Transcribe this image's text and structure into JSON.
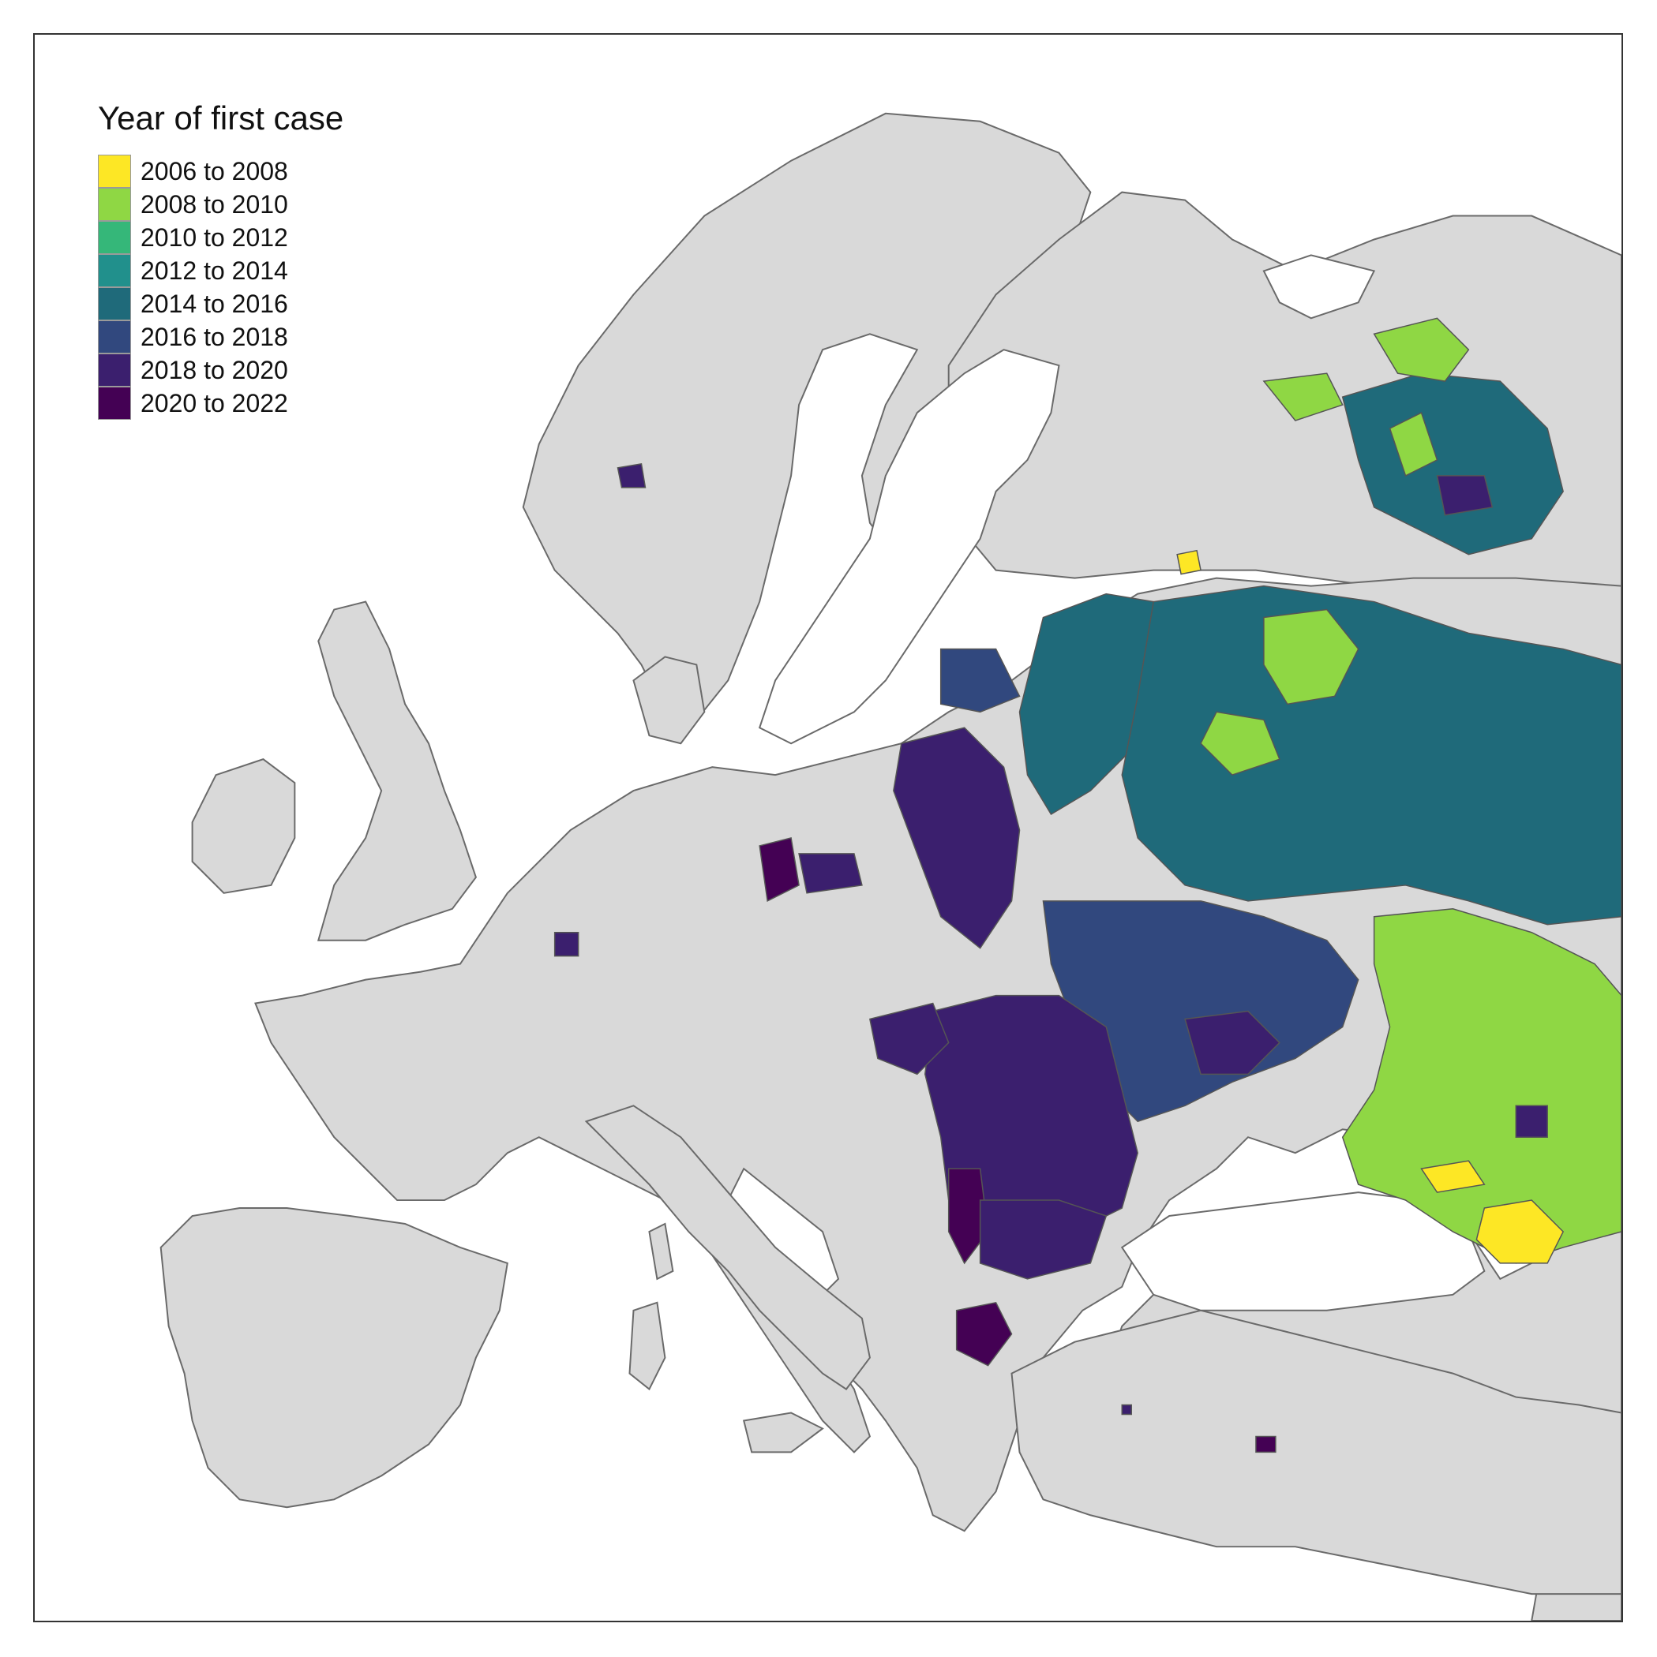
{
  "legend": {
    "title": "Year of first case",
    "items": [
      {
        "label": "2006 to 2008",
        "color": "#FDE725"
      },
      {
        "label": "2008 to 2010",
        "color": "#8FD744"
      },
      {
        "label": "2010 to 2012",
        "color": "#35B779"
      },
      {
        "label": "2012 to 2014",
        "color": "#21908C"
      },
      {
        "label": "2014 to 2016",
        "color": "#1F6A7A"
      },
      {
        "label": "2016 to 2018",
        "color": "#31487E"
      },
      {
        "label": "2018 to 2020",
        "color": "#3B1F6E"
      },
      {
        "label": "2020 to 2022",
        "color": "#440154"
      }
    ]
  },
  "colors": {
    "land": "#D9D9D9",
    "border": "#555555",
    "sea": "#FFFFFF",
    "frame": "#333333"
  }
}
